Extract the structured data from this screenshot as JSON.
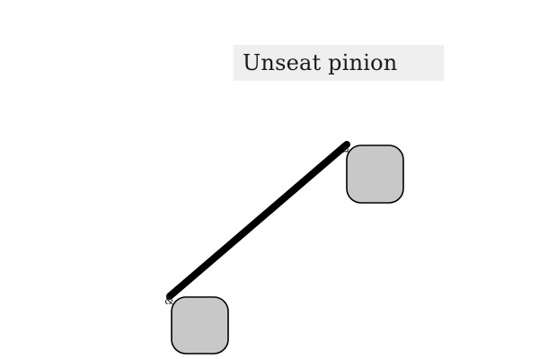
{
  "label": {
    "text": "Unseat pinion"
  },
  "colors": {
    "label_background": "#efefef",
    "block_fill": "#c8c8c8",
    "block_stroke": "#000000",
    "link_stroke": "#000000"
  },
  "icons": {
    "link": "connector-line",
    "block": "rounded-square"
  }
}
